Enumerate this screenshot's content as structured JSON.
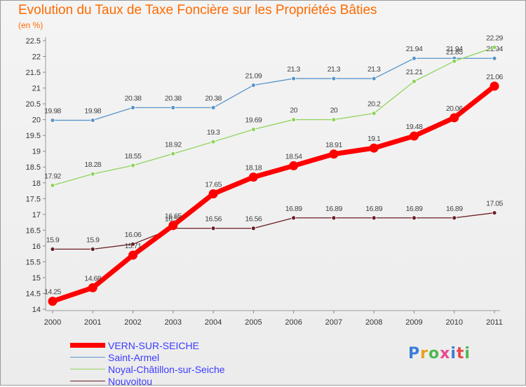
{
  "title": "Evolution du Taux de Taxe Foncière sur les Propriétés Bâties",
  "unit_label": "(en %)",
  "logo": {
    "text": "Proxiti",
    "letter_colors": [
      "#3b7dd8",
      "#e8a21b",
      "#4fb84f",
      "#e84a8f",
      "#3b7dd8",
      "#e84a4a",
      "#4fb84f"
    ]
  },
  "chart_data": {
    "type": "line",
    "title": "Evolution du Taux de Taxe Foncière sur les Propriétés Bâties",
    "ylabel": "(en %)",
    "x": [
      "2000",
      "2001",
      "2002",
      "2003",
      "2004",
      "2005",
      "2006",
      "2007",
      "2008",
      "2009",
      "2010",
      "2011"
    ],
    "ylim": [
      14,
      22.5
    ],
    "yticks": [
      "14",
      "14.5",
      "15",
      "15.5",
      "16",
      "16.5",
      "17",
      "17.5",
      "18",
      "18.5",
      "19",
      "19.5",
      "20",
      "20.5",
      "21",
      "21.5",
      "22",
      "22.5"
    ],
    "grid": false,
    "legend_position": "bottom-left",
    "series": [
      {
        "name": "VERN-SUR-SEICHE",
        "color": "#ff0000",
        "values": [
          14.25,
          14.68,
          15.71,
          16.65,
          17.65,
          18.18,
          18.54,
          18.91,
          19.1,
          19.48,
          20.06,
          21.06
        ],
        "labels": [
          "14.25",
          "14.68",
          "15.71",
          "16.65",
          "17.65",
          "18.18",
          "18.54",
          "18.91",
          "19.1",
          "19.48",
          "20.06",
          "21.06"
        ]
      },
      {
        "name": "Saint-Armel",
        "color": "#5a95c9",
        "values": [
          19.98,
          19.98,
          20.38,
          20.38,
          20.38,
          21.09,
          21.3,
          21.3,
          21.3,
          21.94,
          21.94,
          21.94
        ],
        "labels": [
          "19.98",
          "19.98",
          "20.38",
          "20.38",
          "20.38",
          "21.09",
          "21.3",
          "21.3",
          "21.3",
          "21.94",
          "21.94",
          "21.94"
        ]
      },
      {
        "name": "Noyal-Châtillon-sur-Seiche",
        "color": "#8fd45a",
        "values": [
          17.92,
          18.28,
          18.55,
          18.92,
          19.3,
          19.69,
          20,
          20,
          20.2,
          21.21,
          21.85,
          22.29
        ],
        "labels": [
          "17.92",
          "18.28",
          "18.55",
          "18.92",
          "19.3",
          "19.69",
          "20",
          "20",
          "20.2",
          "21.21",
          "21.85",
          "22.29"
        ]
      },
      {
        "name": "Nouvoitou",
        "color": "#6b1f24",
        "values": [
          15.9,
          15.9,
          16.06,
          16.56,
          16.56,
          16.56,
          16.89,
          16.89,
          16.89,
          16.89,
          16.89,
          17.05
        ],
        "labels": [
          "15.9",
          "15.9",
          "16.06",
          "16.56",
          "16.56",
          "16.56",
          "16.89",
          "16.89",
          "16.89",
          "16.89",
          "16.89",
          "17.05"
        ]
      }
    ]
  }
}
